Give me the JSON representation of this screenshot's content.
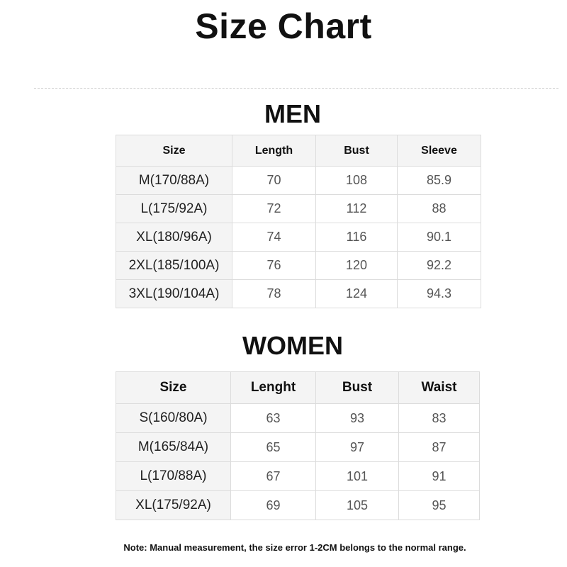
{
  "title": "Size Chart",
  "men": {
    "heading": "MEN",
    "columns": [
      "Size",
      "Length",
      "Bust",
      "Sleeve"
    ],
    "rows": [
      [
        "M(170/88A)",
        "70",
        "108",
        "85.9"
      ],
      [
        "L(175/92A)",
        "72",
        "112",
        "88"
      ],
      [
        "XL(180/96A)",
        "74",
        "116",
        "90.1"
      ],
      [
        "2XL(185/100A)",
        "76",
        "120",
        "92.2"
      ],
      [
        "3XL(190/104A)",
        "78",
        "124",
        "94.3"
      ]
    ]
  },
  "women": {
    "heading": "WOMEN",
    "columns": [
      "Size",
      "Lenght",
      "Bust",
      "Waist"
    ],
    "rows": [
      [
        "S(160/80A)",
        "63",
        "93",
        "83"
      ],
      [
        "M(165/84A)",
        "65",
        "97",
        "87"
      ],
      [
        "L(170/88A)",
        "67",
        "101",
        "91"
      ],
      [
        "XL(175/92A)",
        "69",
        "105",
        "95"
      ]
    ]
  },
  "note": "Note: Manual measurement, the size error 1-2CM belongs to the normal range."
}
